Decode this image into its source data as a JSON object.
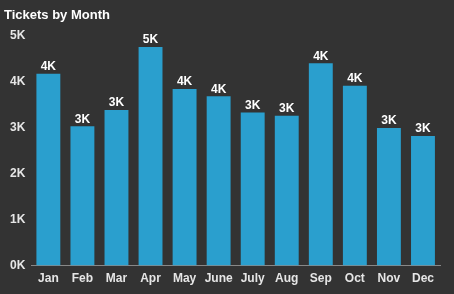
{
  "chart_data": {
    "type": "bar",
    "title": "Tickets by Month",
    "categories": [
      "Jan",
      "Feb",
      "Mar",
      "Apr",
      "May",
      "June",
      "July",
      "Aug",
      "Sep",
      "Oct",
      "Nov",
      "Dec"
    ],
    "values": [
      4170,
      3030,
      3380,
      4750,
      3840,
      3680,
      3330,
      3260,
      4400,
      3910,
      2990,
      2820
    ],
    "value_labels": [
      "4K",
      "3K",
      "3K",
      "5K",
      "4K",
      "4K",
      "3K",
      "3K",
      "4K",
      "4K",
      "3K",
      "3K"
    ],
    "color": "#2a9fce",
    "ylim": [
      0,
      5000
    ],
    "yticks": [
      {
        "value": 0,
        "label": "0K"
      },
      {
        "value": 1000,
        "label": "1K"
      },
      {
        "value": 2000,
        "label": "2K"
      },
      {
        "value": 3000,
        "label": "3K"
      },
      {
        "value": 4000,
        "label": "4K"
      },
      {
        "value": 5000,
        "label": "5K"
      }
    ],
    "grid": false,
    "data_labels": true
  }
}
